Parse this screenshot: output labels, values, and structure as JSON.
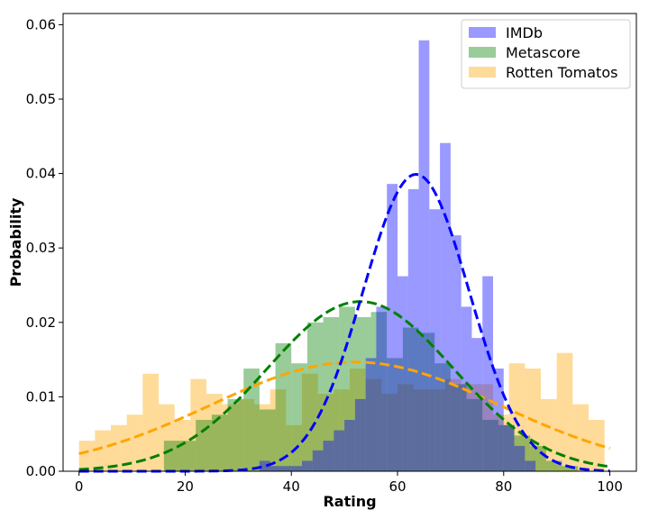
{
  "chart_data": {
    "type": "histogram",
    "title": "",
    "xlabel": "Rating",
    "ylabel": "Probability",
    "xlim": [
      -3,
      105
    ],
    "ylim": [
      0,
      0.0615
    ],
    "xticks": [
      0,
      20,
      40,
      60,
      80,
      100
    ],
    "yticks": [
      0.0,
      0.01,
      0.02,
      0.03,
      0.04,
      0.05,
      0.06
    ],
    "ytick_labels": [
      "0.00",
      "0.01",
      "0.02",
      "0.03",
      "0.04",
      "0.05",
      "0.06"
    ],
    "grid": false,
    "legend": {
      "position": "top-right"
    },
    "series": [
      {
        "name": "Rotten Tomatos",
        "color": "#ffa500",
        "alpha": 0.4,
        "bins": [
          [
            0,
            3,
            0.0041
          ],
          [
            3,
            6,
            0.0055
          ],
          [
            6,
            9,
            0.0062
          ],
          [
            9,
            12,
            0.0076
          ],
          [
            12,
            15,
            0.0131
          ],
          [
            15,
            18,
            0.009
          ],
          [
            18,
            21,
            0.0069
          ],
          [
            21,
            24,
            0.0124
          ],
          [
            24,
            27,
            0.0104
          ],
          [
            27,
            30,
            0.009
          ],
          [
            30,
            33,
            0.0097
          ],
          [
            33,
            36,
            0.009
          ],
          [
            36,
            39,
            0.011
          ],
          [
            39,
            42,
            0.0062
          ],
          [
            42,
            45,
            0.0131
          ],
          [
            45,
            48,
            0.0104
          ],
          [
            48,
            51,
            0.011
          ],
          [
            51,
            54,
            0.0138
          ],
          [
            54,
            57,
            0.0124
          ],
          [
            57,
            60,
            0.0104
          ],
          [
            60,
            63,
            0.0117
          ],
          [
            63,
            66,
            0.011
          ],
          [
            66,
            69,
            0.011
          ],
          [
            69,
            72,
            0.0124
          ],
          [
            72,
            75,
            0.0117
          ],
          [
            75,
            78,
            0.0117
          ],
          [
            78,
            81,
            0.0076
          ],
          [
            81,
            84,
            0.0145
          ],
          [
            84,
            87,
            0.0138
          ],
          [
            87,
            90,
            0.0097
          ],
          [
            90,
            93,
            0.0159
          ],
          [
            93,
            96,
            0.009
          ],
          [
            96,
            99,
            0.0069
          ]
        ],
        "fit": {
          "mean": 52,
          "std": 27.2
        }
      },
      {
        "name": "Metascore",
        "color": "#008000",
        "alpha": 0.4,
        "bins": [
          [
            16,
            19,
            0.0041
          ],
          [
            19,
            22,
            0.0041
          ],
          [
            22,
            25,
            0.0069
          ],
          [
            25,
            28,
            0.0076
          ],
          [
            28,
            31,
            0.0097
          ],
          [
            31,
            34,
            0.0138
          ],
          [
            34,
            37,
            0.0083
          ],
          [
            37,
            40,
            0.0172
          ],
          [
            40,
            43,
            0.0145
          ],
          [
            43,
            46,
            0.02
          ],
          [
            46,
            49,
            0.0207
          ],
          [
            49,
            52,
            0.0221
          ],
          [
            52,
            55,
            0.0207
          ],
          [
            55,
            58,
            0.0214
          ],
          [
            58,
            61,
            0.0152
          ],
          [
            61,
            64,
            0.0193
          ],
          [
            64,
            67,
            0.0186
          ],
          [
            67,
            70,
            0.0145
          ],
          [
            70,
            73,
            0.0117
          ],
          [
            73,
            76,
            0.0097
          ],
          [
            76,
            79,
            0.0069
          ],
          [
            79,
            82,
            0.0062
          ],
          [
            82,
            85,
            0.0048
          ],
          [
            85,
            88,
            0.0034
          ],
          [
            88,
            91,
            0.0014
          ],
          [
            91,
            94,
            0.0007
          ]
        ],
        "fit": {
          "mean": 53,
          "std": 17.5
        }
      },
      {
        "name": "IMDb",
        "color": "#0000ff",
        "alpha": 0.4,
        "bins": [
          [
            34,
            36,
            0.0014
          ],
          [
            36,
            38,
            0.0007
          ],
          [
            38,
            40,
            0.0007
          ],
          [
            40,
            42,
            0.0007
          ],
          [
            42,
            44,
            0.0014
          ],
          [
            44,
            46,
            0.0028
          ],
          [
            46,
            48,
            0.0041
          ],
          [
            48,
            50,
            0.0055
          ],
          [
            50,
            52,
            0.0069
          ],
          [
            52,
            54,
            0.0097
          ],
          [
            54,
            56,
            0.0152
          ],
          [
            56,
            58,
            0.0221
          ],
          [
            58,
            60,
            0.0386
          ],
          [
            60,
            62,
            0.0262
          ],
          [
            62,
            64,
            0.0379
          ],
          [
            64,
            66,
            0.0579
          ],
          [
            66,
            68,
            0.0352
          ],
          [
            68,
            70,
            0.0441
          ],
          [
            70,
            72,
            0.0317
          ],
          [
            72,
            74,
            0.0221
          ],
          [
            74,
            76,
            0.0179
          ],
          [
            76,
            78,
            0.0262
          ],
          [
            78,
            80,
            0.0138
          ],
          [
            80,
            82,
            0.0062
          ],
          [
            82,
            84,
            0.0034
          ],
          [
            84,
            86,
            0.0014
          ]
        ],
        "fit": {
          "mean": 63.5,
          "std": 10
        }
      }
    ]
  }
}
